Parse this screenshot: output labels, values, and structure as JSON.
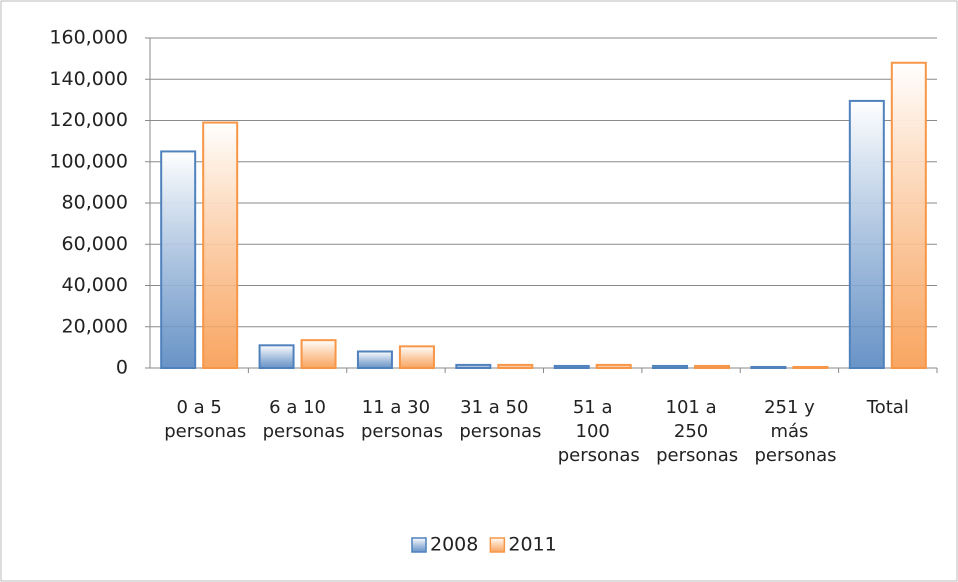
{
  "chart_data": {
    "type": "bar",
    "categories": [
      "0 a 5 personas",
      "6 a 10 personas",
      "11 a 30 personas",
      "31 a 50 personas",
      "51 a 100 personas",
      "101 a 250 personas",
      "251 y más personas",
      "Total"
    ],
    "series": [
      {
        "name": "2008",
        "color": "#4f81bd",
        "values": [
          105000,
          11000,
          8000,
          1500,
          1000,
          1000,
          500,
          129500
        ]
      },
      {
        "name": "2011",
        "color": "#f79646",
        "values": [
          119000,
          13500,
          10500,
          1500,
          1500,
          1000,
          500,
          148000
        ]
      }
    ],
    "ylim": [
      0,
      160000
    ],
    "yticks": [
      0,
      {
        "value": 20000,
        "label": "20,000"
      },
      {
        "value": 40000,
        "label": "40,000"
      },
      {
        "value": 60000,
        "label": "60,000"
      },
      {
        "value": 80000,
        "label": "80,000"
      },
      {
        "value": 100000,
        "label": "100,000"
      },
      {
        "value": 120000,
        "label": "120,000"
      },
      {
        "value": 140000,
        "label": "140,000"
      },
      {
        "value": 160000,
        "label": "160,000"
      }
    ],
    "grid": true,
    "legend": "bottom"
  }
}
